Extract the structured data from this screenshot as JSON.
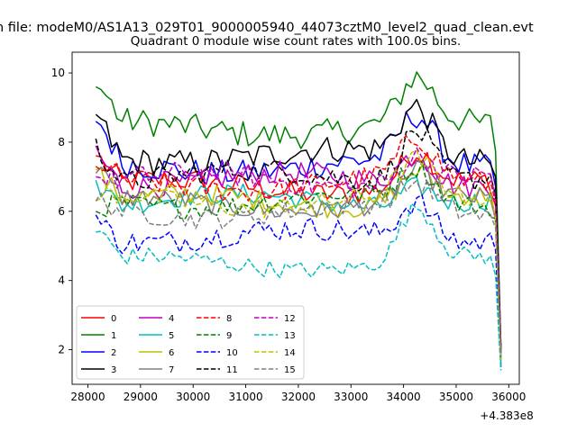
{
  "chart_data": {
    "type": "line",
    "suptitle": "n file: modeM0/AS1A13_029T01_9000005940_44073cztM0_level2_quad_clean.evt",
    "title": "Quadrant 0 module wise count rates with 100.0s bins.",
    "xlabel": "",
    "ylabel": "",
    "x_offset_label": "+4.383e8",
    "xlim": [
      27700,
      36200
    ],
    "ylim": [
      1.0,
      10.6
    ],
    "x_start": 28150,
    "x_step": 100,
    "x_end": 35850,
    "xticks": [
      28000,
      29000,
      30000,
      31000,
      32000,
      33000,
      34000,
      35000,
      36000
    ],
    "xtick_labels": [
      "28000",
      "29000",
      "30000",
      "31000",
      "32000",
      "33000",
      "34000",
      "35000",
      "36000"
    ],
    "yticks": [
      2,
      4,
      6,
      8,
      10
    ],
    "ytick_labels": [
      "2",
      "4",
      "6",
      "8",
      "10"
    ],
    "grid": false,
    "legend_position": "lower-left",
    "legend_columns": 4,
    "series": [
      {
        "name": "0",
        "color": "#ff0000",
        "dash": "solid",
        "level": 6.7,
        "bump": 1.0,
        "amp": 0.35,
        "start": 7.6,
        "end": 1.8
      },
      {
        "name": "1",
        "color": "#008000",
        "dash": "solid",
        "level": 8.4,
        "bump": 1.3,
        "amp": 0.4,
        "start": 9.6,
        "end": 2.0
      },
      {
        "name": "2",
        "color": "#0000ff",
        "dash": "solid",
        "level": 7.3,
        "bump": 1.3,
        "amp": 0.4,
        "start": 8.6,
        "end": 1.9
      },
      {
        "name": "3",
        "color": "#000000",
        "dash": "solid",
        "level": 7.6,
        "bump": 1.4,
        "amp": 0.4,
        "start": 8.8,
        "end": 2.1
      },
      {
        "name": "4",
        "color": "#bf00bf",
        "dash": "solid",
        "level": 6.9,
        "bump": 0.9,
        "amp": 0.35,
        "start": 7.9,
        "end": 2.0
      },
      {
        "name": "5",
        "color": "#00bfbf",
        "dash": "solid",
        "level": 6.3,
        "bump": 0.6,
        "amp": 0.3,
        "start": 6.9,
        "end": 1.6
      },
      {
        "name": "6",
        "color": "#bfbf00",
        "dash": "solid",
        "level": 6.3,
        "bump": 0.9,
        "amp": 0.3,
        "start": 7.2,
        "end": 1.8
      },
      {
        "name": "7",
        "color": "#808080",
        "dash": "solid",
        "level": 6.2,
        "bump": 0.8,
        "amp": 0.3,
        "start": 7.1,
        "end": 1.9
      },
      {
        "name": "8",
        "color": "#ff0000",
        "dash": "dashed",
        "level": 6.8,
        "bump": 1.1,
        "amp": 0.35,
        "start": 7.3,
        "end": 1.8
      },
      {
        "name": "9",
        "color": "#008000",
        "dash": "dashed",
        "level": 6.3,
        "bump": 0.9,
        "amp": 0.3,
        "start": 6.0,
        "end": 1.7
      },
      {
        "name": "10",
        "color": "#0000ff",
        "dash": "dashed",
        "level": 5.3,
        "bump": 1.1,
        "amp": 0.35,
        "start": 5.9,
        "end": 1.5
      },
      {
        "name": "11",
        "color": "#000000",
        "dash": "dashed",
        "level": 7.0,
        "bump": 1.5,
        "amp": 0.35,
        "start": 8.1,
        "end": 2.0
      },
      {
        "name": "12",
        "color": "#bf00bf",
        "dash": "dashed",
        "level": 6.9,
        "bump": 0.8,
        "amp": 0.35,
        "start": 7.0,
        "end": 1.9
      },
      {
        "name": "13",
        "color": "#00bfbf",
        "dash": "dashed",
        "level": 4.5,
        "bump": 1.5,
        "amp": 0.25,
        "start": 5.4,
        "end": 1.4
      },
      {
        "name": "14",
        "color": "#bfbf00",
        "dash": "dashed",
        "level": 6.3,
        "bump": 1.0,
        "amp": 0.3,
        "start": 6.3,
        "end": 1.7
      },
      {
        "name": "15",
        "color": "#808080",
        "dash": "dashed",
        "level": 6.0,
        "bump": 0.7,
        "amp": 0.3,
        "start": 6.3,
        "end": 1.8
      }
    ]
  }
}
